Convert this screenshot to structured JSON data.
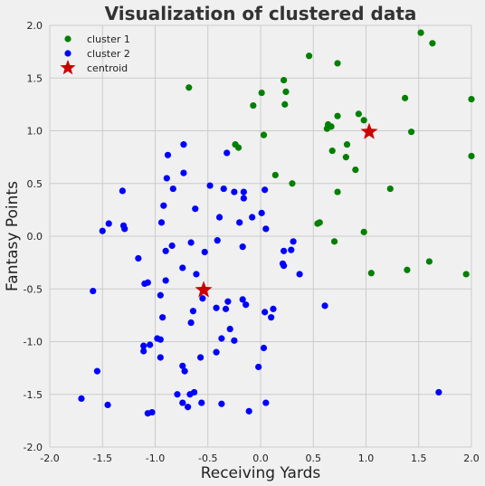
{
  "chart_data": {
    "type": "scatter",
    "title": "Visualization of clustered data",
    "xlabel": "Receiving Yards",
    "ylabel": "Fantasy Points",
    "xlim": [
      -2.0,
      2.0
    ],
    "ylim": [
      -2.0,
      2.0
    ],
    "x_ticks": [
      "-2.0",
      "-1.5",
      "-1.0",
      "-0.5",
      "0.0",
      "0.5",
      "1.0",
      "1.5",
      "2.0"
    ],
    "y_ticks": [
      "-2.0",
      "-1.5",
      "-1.0",
      "-0.5",
      "0.0",
      "0.5",
      "1.0",
      "1.5",
      "2.0"
    ],
    "grid": true,
    "legend_position": "top-left",
    "series": [
      {
        "name": "cluster 1",
        "color": "#008000",
        "marker": "circle",
        "points": [
          [
            1.52,
            1.93
          ],
          [
            1.63,
            1.83
          ],
          [
            0.46,
            1.71
          ],
          [
            0.73,
            1.64
          ],
          [
            -0.68,
            1.41
          ],
          [
            0.22,
            1.48
          ],
          [
            0.24,
            1.37
          ],
          [
            0.01,
            1.36
          ],
          [
            -0.07,
            1.24
          ],
          [
            0.23,
            1.25
          ],
          [
            1.37,
            1.31
          ],
          [
            2.0,
            1.3
          ],
          [
            0.73,
            1.14
          ],
          [
            0.93,
            1.16
          ],
          [
            0.98,
            1.1
          ],
          [
            0.64,
            1.06
          ],
          [
            0.63,
            1.02
          ],
          [
            0.67,
            1.04
          ],
          [
            1.43,
            0.99
          ],
          [
            0.03,
            0.96
          ],
          [
            -0.24,
            0.87
          ],
          [
            -0.21,
            0.84
          ],
          [
            0.82,
            0.87
          ],
          [
            0.68,
            0.81
          ],
          [
            0.81,
            0.75
          ],
          [
            2.0,
            0.76
          ],
          [
            0.9,
            0.63
          ],
          [
            0.14,
            0.58
          ],
          [
            0.3,
            0.5
          ],
          [
            1.23,
            0.45
          ],
          [
            0.73,
            0.42
          ],
          [
            0.54,
            0.12
          ],
          [
            0.56,
            0.13
          ],
          [
            0.98,
            0.04
          ],
          [
            0.7,
            -0.05
          ],
          [
            1.6,
            -0.24
          ],
          [
            1.39,
            -0.32
          ],
          [
            1.05,
            -0.35
          ],
          [
            1.95,
            -0.36
          ]
        ]
      },
      {
        "name": "cluster 2",
        "color": "#0000ff",
        "marker": "circle",
        "points": [
          [
            -0.73,
            0.87
          ],
          [
            -0.88,
            0.77
          ],
          [
            -0.32,
            0.79
          ],
          [
            -0.73,
            0.6
          ],
          [
            -0.89,
            0.55
          ],
          [
            -0.83,
            0.45
          ],
          [
            -1.31,
            0.43
          ],
          [
            -0.48,
            0.48
          ],
          [
            -0.35,
            0.45
          ],
          [
            -0.25,
            0.42
          ],
          [
            -0.16,
            0.42
          ],
          [
            0.04,
            0.44
          ],
          [
            -0.16,
            0.36
          ],
          [
            -0.92,
            0.29
          ],
          [
            -0.62,
            0.26
          ],
          [
            -0.39,
            0.18
          ],
          [
            0.01,
            0.22
          ],
          [
            -0.08,
            0.18
          ],
          [
            -0.94,
            0.13
          ],
          [
            -0.2,
            0.13
          ],
          [
            -1.44,
            0.12
          ],
          [
            -1.3,
            0.1
          ],
          [
            -1.29,
            0.07
          ],
          [
            -1.5,
            0.05
          ],
          [
            0.05,
            0.07
          ],
          [
            -0.41,
            -0.04
          ],
          [
            -0.66,
            -0.06
          ],
          [
            -0.17,
            -0.1
          ],
          [
            -0.84,
            -0.09
          ],
          [
            -0.9,
            -0.14
          ],
          [
            -0.53,
            -0.15
          ],
          [
            0.31,
            -0.05
          ],
          [
            0.22,
            -0.14
          ],
          [
            0.29,
            -0.13
          ],
          [
            -1.16,
            -0.21
          ],
          [
            0.21,
            -0.26
          ],
          [
            0.22,
            -0.28
          ],
          [
            -0.74,
            -0.3
          ],
          [
            -0.9,
            -0.42
          ],
          [
            -1.1,
            -0.45
          ],
          [
            -1.07,
            -0.44
          ],
          [
            -0.61,
            -0.36
          ],
          [
            0.37,
            -0.36
          ],
          [
            -1.59,
            -0.52
          ],
          [
            -0.95,
            -0.56
          ],
          [
            -0.55,
            -0.59
          ],
          [
            -0.31,
            -0.62
          ],
          [
            -0.17,
            -0.6
          ],
          [
            -0.14,
            -0.65
          ],
          [
            -0.42,
            -0.68
          ],
          [
            -0.33,
            -0.69
          ],
          [
            -0.64,
            -0.71
          ],
          [
            0.12,
            -0.69
          ],
          [
            0.04,
            -0.72
          ],
          [
            0.1,
            -0.77
          ],
          [
            0.61,
            -0.66
          ],
          [
            -0.93,
            -0.77
          ],
          [
            -0.66,
            -0.82
          ],
          [
            -0.29,
            -0.88
          ],
          [
            -0.37,
            -0.97
          ],
          [
            -0.25,
            -0.99
          ],
          [
            -0.98,
            -0.97
          ],
          [
            -0.95,
            -0.98
          ],
          [
            -1.11,
            -1.04
          ],
          [
            -1.11,
            -1.09
          ],
          [
            -1.05,
            -1.03
          ],
          [
            0.03,
            -1.06
          ],
          [
            -0.42,
            -1.1
          ],
          [
            -0.95,
            -1.15
          ],
          [
            -0.57,
            -1.15
          ],
          [
            -0.74,
            -1.23
          ],
          [
            -0.72,
            -1.28
          ],
          [
            -0.02,
            -1.24
          ],
          [
            -1.55,
            -1.28
          ],
          [
            -0.79,
            -1.5
          ],
          [
            -0.67,
            -1.5
          ],
          [
            -0.63,
            -1.48
          ],
          [
            -1.7,
            -1.54
          ],
          [
            -1.45,
            -1.6
          ],
          [
            -0.74,
            -1.58
          ],
          [
            -0.56,
            -1.58
          ],
          [
            -0.37,
            -1.59
          ],
          [
            -0.69,
            -1.62
          ],
          [
            0.05,
            -1.58
          ],
          [
            -1.07,
            -1.68
          ],
          [
            -1.03,
            -1.67
          ],
          [
            -0.11,
            -1.66
          ],
          [
            1.69,
            -1.48
          ]
        ]
      },
      {
        "name": "centroid",
        "color": "#cc0000",
        "marker": "star",
        "points": [
          [
            1.03,
            0.99
          ],
          [
            -0.54,
            -0.51
          ]
        ]
      }
    ]
  }
}
